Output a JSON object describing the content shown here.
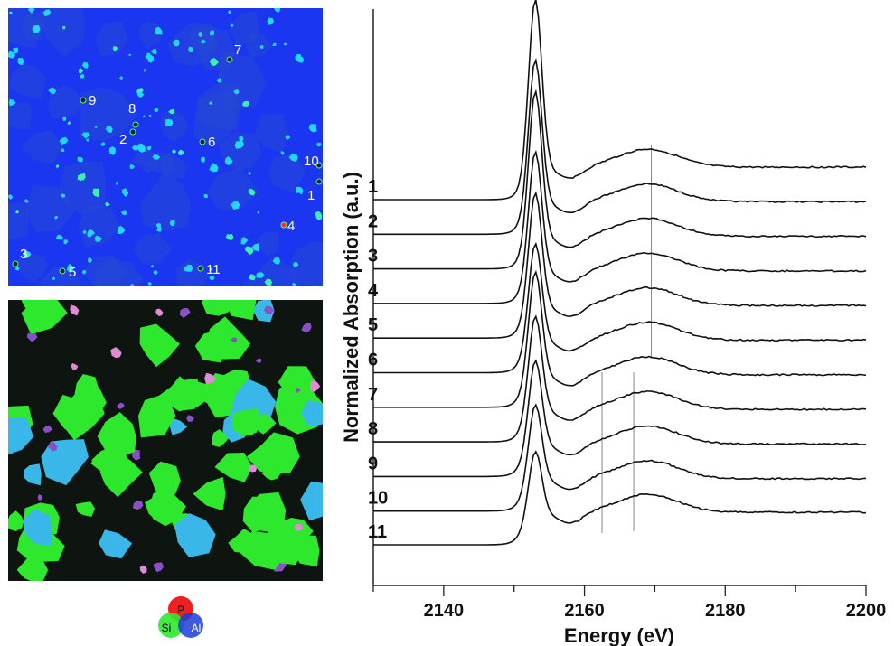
{
  "colors": {
    "map_bg": "#1a36f0",
    "hotspot": "#22d7ff",
    "phase_si": "#2ee82e",
    "phase_p": "#ee2020",
    "phase_al": "#1c3cdc",
    "pink": "#e08ad8",
    "line": "#111111",
    "guide": "#888888"
  },
  "map_points": [
    {
      "label": "7"
    },
    {
      "label": "9"
    },
    {
      "label": "8"
    },
    {
      "label": "2"
    },
    {
      "label": "6"
    },
    {
      "label": "10"
    },
    {
      "label": "1"
    },
    {
      "label": "4"
    },
    {
      "label": "3"
    },
    {
      "label": "5"
    },
    {
      "label": "11"
    }
  ],
  "legend": {
    "p": "P",
    "si": "Si",
    "al": "Al"
  },
  "chart_data": {
    "type": "line",
    "xlabel": "Energy (eV)",
    "ylabel": "Normalized Absorption (a.u.)",
    "xlim": [
      2130,
      2200
    ],
    "x_ticks": [
      "2140",
      "2160",
      "2180",
      "2200"
    ],
    "y_ticks": [],
    "grid": false,
    "series": [
      {
        "name": "1",
        "baseline": 0,
        "peak_height": 5.3
      },
      {
        "name": "2",
        "baseline": 1,
        "peak_height": 4.5
      },
      {
        "name": "3",
        "baseline": 2,
        "peak_height": 4.6
      },
      {
        "name": "4",
        "baseline": 3,
        "peak_height": 3.8
      },
      {
        "name": "5",
        "baseline": 4,
        "peak_height": 3.6
      },
      {
        "name": "6",
        "baseline": 5,
        "peak_height": 3.1
      },
      {
        "name": "7",
        "baseline": 6,
        "peak_height": 3.3
      },
      {
        "name": "8",
        "baseline": 7,
        "peak_height": 3.0
      },
      {
        "name": "9",
        "baseline": 8,
        "peak_height": 2.7
      },
      {
        "name": "10",
        "baseline": 9,
        "peak_height": 2.4
      },
      {
        "name": "11",
        "baseline": 10,
        "peak_height": 2.0
      }
    ],
    "peak_energy": 2153,
    "reference_lines": [
      {
        "x": 2169.5
      },
      {
        "x": 2162.5
      },
      {
        "x": 2167
      }
    ]
  }
}
